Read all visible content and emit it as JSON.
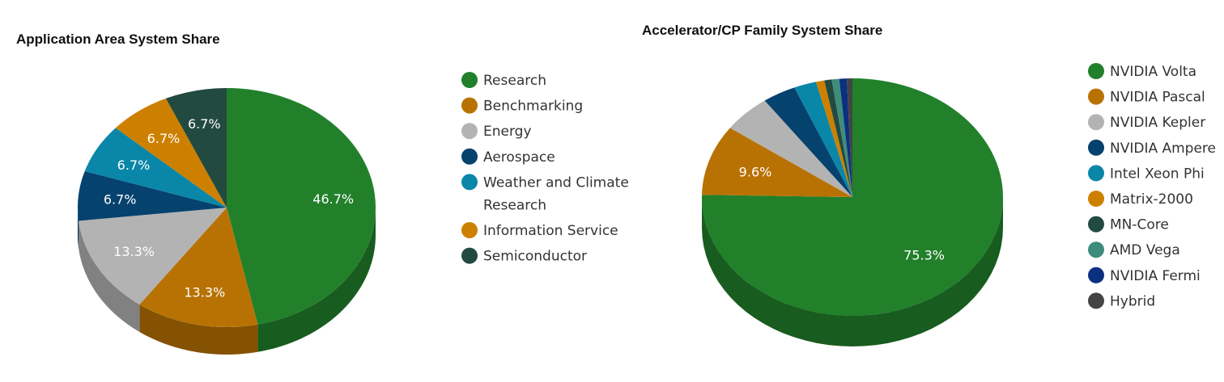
{
  "colors": {
    "green": "#22802B",
    "dark_orange": "#B87203",
    "gray": "#B3B3B3",
    "navy": "#05426E",
    "teal": "#0A86A8",
    "orange": "#CD8000",
    "dark_slate": "#224A40",
    "sea_green": "#3E8C7C",
    "blue": "#0B3080",
    "charcoal": "#444444"
  },
  "chart_data": [
    {
      "type": "pie",
      "title": "Application Area System Share",
      "legend_position": "right",
      "slices": [
        {
          "name": "Research",
          "value": 46.7,
          "label": "46.7%",
          "color": "#22802B"
        },
        {
          "name": "Benchmarking",
          "value": 13.3,
          "label": "13.3%",
          "color": "#B87203"
        },
        {
          "name": "Energy",
          "value": 13.3,
          "label": "13.3%",
          "color": "#B3B3B3"
        },
        {
          "name": "Aerospace",
          "value": 6.7,
          "label": "6.7%",
          "color": "#05426E"
        },
        {
          "name": "Weather and Climate Research",
          "value": 6.7,
          "label": "6.7%",
          "color": "#0A86A8"
        },
        {
          "name": "Information Service",
          "value": 6.7,
          "label": "6.7%",
          "color": "#CD8000"
        },
        {
          "name": "Semiconductor",
          "value": 6.7,
          "label": "6.7%",
          "color": "#224A40"
        }
      ]
    },
    {
      "type": "pie",
      "title": "Accelerator/CP Family System Share",
      "legend_position": "right",
      "slices": [
        {
          "name": "NVIDIA Volta",
          "value": 75.3,
          "label": "75.3%",
          "color": "#22802B"
        },
        {
          "name": "NVIDIA Pascal",
          "value": 9.6,
          "label": "9.6%",
          "color": "#B87203"
        },
        {
          "name": "NVIDIA Kepler",
          "value": 5.2,
          "label": "",
          "color": "#B3B3B3"
        },
        {
          "name": "NVIDIA Ampere",
          "value": 3.6,
          "label": "",
          "color": "#05426E"
        },
        {
          "name": "Intel Xeon Phi",
          "value": 2.4,
          "label": "",
          "color": "#0A86A8"
        },
        {
          "name": "Matrix-2000",
          "value": 0.9,
          "label": "",
          "color": "#CD8000"
        },
        {
          "name": "MN-Core",
          "value": 0.8,
          "label": "",
          "color": "#224A40"
        },
        {
          "name": "AMD Vega",
          "value": 0.8,
          "label": "",
          "color": "#3E8C7C"
        },
        {
          "name": "NVIDIA Fermi",
          "value": 0.8,
          "label": "",
          "color": "#0B3080"
        },
        {
          "name": "Hybrid",
          "value": 0.6,
          "label": "",
          "color": "#444444"
        }
      ]
    }
  ]
}
